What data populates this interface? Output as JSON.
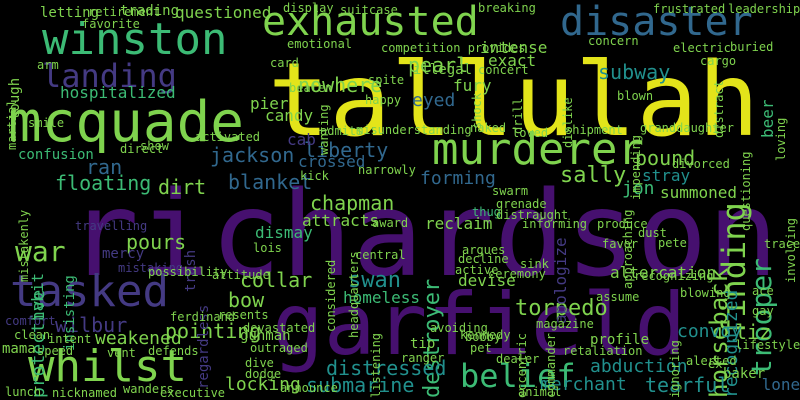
{
  "palette": {
    "background": "#000000",
    "yellow": "#e3e41a",
    "lime": "#7fd34e",
    "green": "#3cbb75",
    "teal": "#21908d",
    "blue": "#31688e",
    "indigo": "#443a83",
    "purple": "#46106f"
  },
  "words": [
    {
      "text": "richardson",
      "color": "#46106f",
      "orientation": "horizontal"
    },
    {
      "text": "tallulah",
      "color": "#e3e41a",
      "orientation": "horizontal"
    },
    {
      "text": "garfield",
      "color": "#46106f",
      "orientation": "horizontal"
    },
    {
      "text": "mcquade",
      "color": "#7fd34e",
      "orientation": "horizontal"
    },
    {
      "text": "whilst",
      "color": "#7fd34e",
      "orientation": "horizontal"
    },
    {
      "text": "exhausted",
      "color": "#7fd34e",
      "orientation": "horizontal"
    },
    {
      "text": "disaster",
      "color": "#31688e",
      "orientation": "horizontal"
    },
    {
      "text": "murderer",
      "color": "#7fd34e",
      "orientation": "horizontal"
    },
    {
      "text": "winston",
      "color": "#3cbb75",
      "orientation": "horizontal"
    },
    {
      "text": "tasked",
      "color": "#443a83",
      "orientation": "horizontal"
    },
    {
      "text": "landing",
      "color": "#443a83",
      "orientation": "horizontal"
    },
    {
      "text": "finding",
      "color": "#7fd34e",
      "orientation": "vertical"
    },
    {
      "text": "belief",
      "color": "#3cbb75",
      "orientation": "horizontal"
    },
    {
      "text": "war",
      "color": "#7fd34e",
      "orientation": "horizontal"
    },
    {
      "text": "trooper",
      "color": "#3cbb75",
      "orientation": "vertical"
    },
    {
      "text": "horseback",
      "color": "#7fd34e",
      "orientation": "vertical"
    },
    {
      "text": "destroyer",
      "color": "#3cbb75",
      "orientation": "vertical"
    },
    {
      "text": "torpedo",
      "color": "#7fd34e",
      "orientation": "horizontal"
    },
    {
      "text": "sally",
      "color": "#7fd34e",
      "orientation": "horizontal"
    },
    {
      "text": "jackson",
      "color": "#31688e",
      "orientation": "horizontal"
    },
    {
      "text": "liberty",
      "color": "#31688e",
      "orientation": "horizontal"
    },
    {
      "text": "nowhere",
      "color": "#7fd34e",
      "orientation": "horizontal"
    },
    {
      "text": "subway",
      "color": "#21908d",
      "orientation": "horizontal"
    },
    {
      "text": "hospitalized",
      "color": "#3cbb75",
      "orientation": "horizontal"
    },
    {
      "text": "pearl",
      "color": "#7fd34e",
      "orientation": "horizontal"
    },
    {
      "text": "dirt",
      "color": "#7fd34e",
      "orientation": "horizontal"
    },
    {
      "text": "floating",
      "color": "#3cbb75",
      "orientation": "horizontal"
    },
    {
      "text": "blanket",
      "color": "#31688e",
      "orientation": "horizontal"
    },
    {
      "text": "chapman",
      "color": "#7fd34e",
      "orientation": "horizontal"
    },
    {
      "text": "pound",
      "color": "#7fd34e",
      "orientation": "horizontal"
    },
    {
      "text": "swan",
      "color": "#21908d",
      "orientation": "horizontal"
    },
    {
      "text": "pours",
      "color": "#7fd34e",
      "orientation": "horizontal"
    },
    {
      "text": "protective",
      "color": "#3cbb75",
      "orientation": "vertical"
    },
    {
      "text": "collar",
      "color": "#7fd34e",
      "orientation": "horizontal"
    },
    {
      "text": "submarine",
      "color": "#21908d",
      "orientation": "horizontal"
    },
    {
      "text": "tearful",
      "color": "#21908d",
      "orientation": "horizontal"
    },
    {
      "text": "distressed",
      "color": "#21908d",
      "orientation": "horizontal"
    },
    {
      "text": "abduction",
      "color": "#21908d",
      "orientation": "horizontal"
    },
    {
      "text": "pointing",
      "color": "#7fd34e",
      "orientation": "horizontal"
    },
    {
      "text": "wilbur",
      "color": "#443a83",
      "orientation": "horizontal"
    },
    {
      "text": "bow",
      "color": "#7fd34e",
      "orientation": "horizontal"
    },
    {
      "text": "liz",
      "color": "#7fd34e",
      "orientation": "horizontal"
    },
    {
      "text": "convoy",
      "color": "#21908d",
      "orientation": "horizontal"
    },
    {
      "text": "recognized",
      "color": "#21908d",
      "orientation": "vertical"
    },
    {
      "text": "weakened",
      "color": "#7fd34e",
      "orientation": "horizontal"
    },
    {
      "text": "locking",
      "color": "#7fd34e",
      "orientation": "horizontal"
    },
    {
      "text": "merchant",
      "color": "#21908d",
      "orientation": "horizontal"
    },
    {
      "text": "lone",
      "color": "#31688e",
      "orientation": "horizontal"
    },
    {
      "text": "beer",
      "color": "#3cbb75",
      "orientation": "vertical"
    },
    {
      "text": "questioned",
      "color": "#7fd34e",
      "orientation": "horizontal"
    },
    {
      "text": "cab",
      "color": "#443a83",
      "orientation": "horizontal"
    },
    {
      "text": "crossed",
      "color": "#31688e",
      "orientation": "horizontal"
    },
    {
      "text": "forming",
      "color": "#31688e",
      "orientation": "horizontal"
    },
    {
      "text": "fury",
      "color": "#7fd34e",
      "orientation": "horizontal"
    },
    {
      "text": "eyed",
      "color": "#31688e",
      "orientation": "horizontal"
    },
    {
      "text": "intense",
      "color": "#7fd34e",
      "orientation": "horizontal"
    },
    {
      "text": "exact",
      "color": "#7fd34e",
      "orientation": "horizontal"
    },
    {
      "text": "jon",
      "color": "#3cbb75",
      "orientation": "horizontal"
    },
    {
      "text": "stray",
      "color": "#21908d",
      "orientation": "horizontal"
    },
    {
      "text": "summoned",
      "color": "#7fd34e",
      "orientation": "horizontal"
    },
    {
      "text": "apologize",
      "color": "#443a83",
      "orientation": "vertical"
    },
    {
      "text": "insisting",
      "color": "#3cbb75",
      "orientation": "vertical"
    },
    {
      "text": "habit",
      "color": "#3cbb75",
      "orientation": "vertical"
    },
    {
      "text": "ran",
      "color": "#31688e",
      "orientation": "horizontal"
    },
    {
      "text": "dismay",
      "color": "#3cbb75",
      "orientation": "horizontal"
    },
    {
      "text": "homeless",
      "color": "#3cbb75",
      "orientation": "horizontal"
    },
    {
      "text": "devise",
      "color": "#7fd34e",
      "orientation": "horizontal"
    },
    {
      "text": "altercation",
      "color": "#7fd34e",
      "orientation": "horizontal"
    },
    {
      "text": "pier",
      "color": "#7fd34e",
      "orientation": "horizontal"
    },
    {
      "text": "candy",
      "color": "#7fd34e",
      "orientation": "horizontal"
    },
    {
      "text": "confusion",
      "color": "#3cbb75",
      "orientation": "horizontal"
    },
    {
      "text": "trash",
      "color": "#443a83",
      "orientation": "vertical"
    },
    {
      "text": "regardless",
      "color": "#443a83",
      "orientation": "vertical"
    },
    {
      "text": "attracts",
      "color": "#7fd34e",
      "orientation": "horizontal"
    },
    {
      "text": "reclaim",
      "color": "#7fd34e",
      "orientation": "horizontal"
    },
    {
      "text": "thug",
      "color": "#3cbb75",
      "orientation": "horizontal"
    },
    {
      "text": "argues",
      "color": "#7fd34e",
      "orientation": "horizontal"
    },
    {
      "text": "active",
      "color": "#7fd34e",
      "orientation": "horizontal"
    },
    {
      "text": "dust",
      "color": "#7fd34e",
      "orientation": "horizontal"
    },
    {
      "text": "pete",
      "color": "#7fd34e",
      "orientation": "horizontal"
    },
    {
      "text": "produce",
      "color": "#7fd34e",
      "orientation": "horizontal"
    },
    {
      "text": "ceremony",
      "color": "#7fd34e",
      "orientation": "horizontal"
    },
    {
      "text": "sink",
      "color": "#7fd34e",
      "orientation": "horizontal"
    },
    {
      "text": "assume",
      "color": "#7fd34e",
      "orientation": "horizontal"
    },
    {
      "text": "tip",
      "color": "#7fd34e",
      "orientation": "horizontal"
    },
    {
      "text": "profile",
      "color": "#7fd34e",
      "orientation": "horizontal"
    },
    {
      "text": "retaliation",
      "color": "#7fd34e",
      "orientation": "horizontal"
    },
    {
      "text": "baker",
      "color": "#7fd34e",
      "orientation": "horizontal"
    },
    {
      "text": "ace",
      "color": "#7fd34e",
      "orientation": "horizontal"
    },
    {
      "text": "mercy",
      "color": "#443a83",
      "orientation": "horizontal"
    },
    {
      "text": "gunman",
      "color": "#7fd34e",
      "orientation": "horizontal"
    },
    {
      "text": "mistaking",
      "color": "#443a83",
      "orientation": "horizontal"
    },
    {
      "text": "travelling",
      "color": "#443a83",
      "orientation": "horizontal"
    },
    {
      "text": "possibility",
      "color": "#7fd34e",
      "orientation": "horizontal"
    },
    {
      "text": "attitude",
      "color": "#7fd34e",
      "orientation": "horizontal"
    },
    {
      "text": "comfort",
      "color": "#443a83",
      "orientation": "horizontal"
    },
    {
      "text": "clean",
      "color": "#7fd34e",
      "orientation": "horizontal"
    },
    {
      "text": "mama",
      "color": "#7fd34e",
      "orientation": "horizontal"
    },
    {
      "text": "intent",
      "color": "#7fd34e",
      "orientation": "horizontal"
    },
    {
      "text": "ferdinand",
      "color": "#7fd34e",
      "orientation": "horizontal"
    },
    {
      "text": "speed",
      "color": "#7fd34e",
      "orientation": "horizontal"
    },
    {
      "text": "vent",
      "color": "#7fd34e",
      "orientation": "horizontal"
    },
    {
      "text": "defends",
      "color": "#7fd34e",
      "orientation": "horizontal"
    },
    {
      "text": "dive",
      "color": "#7fd34e",
      "orientation": "horizontal"
    },
    {
      "text": "dodge",
      "color": "#7fd34e",
      "orientation": "horizontal"
    },
    {
      "text": "outraged",
      "color": "#7fd34e",
      "orientation": "horizontal"
    },
    {
      "text": "devastated",
      "color": "#7fd34e",
      "orientation": "horizontal"
    },
    {
      "text": "resents",
      "color": "#7fd34e",
      "orientation": "horizontal"
    },
    {
      "text": "lunch",
      "color": "#7fd34e",
      "orientation": "horizontal"
    },
    {
      "text": "nicknamed",
      "color": "#7fd34e",
      "orientation": "horizontal"
    },
    {
      "text": "wanders",
      "color": "#7fd34e",
      "orientation": "horizontal"
    },
    {
      "text": "executive",
      "color": "#7fd34e",
      "orientation": "horizontal"
    },
    {
      "text": "announce",
      "color": "#7fd34e",
      "orientation": "horizontal"
    },
    {
      "text": "ranger",
      "color": "#7fd34e",
      "orientation": "horizontal"
    },
    {
      "text": "pet",
      "color": "#7fd34e",
      "orientation": "horizontal"
    },
    {
      "text": "kennedy",
      "color": "#7fd34e",
      "orientation": "horizontal"
    },
    {
      "text": "dealer",
      "color": "#7fd34e",
      "orientation": "horizontal"
    },
    {
      "text": "avoiding",
      "color": "#7fd34e",
      "orientation": "horizontal"
    },
    {
      "text": "bobby",
      "color": "#7fd34e",
      "orientation": "horizontal"
    },
    {
      "text": "magazine",
      "color": "#7fd34e",
      "orientation": "horizontal"
    },
    {
      "text": "grenade",
      "color": "#7fd34e",
      "orientation": "horizontal"
    },
    {
      "text": "swarm",
      "color": "#7fd34e",
      "orientation": "horizontal"
    },
    {
      "text": "distraught",
      "color": "#7fd34e",
      "orientation": "horizontal"
    },
    {
      "text": "informing",
      "color": "#7fd34e",
      "orientation": "horizontal"
    },
    {
      "text": "award",
      "color": "#7fd34e",
      "orientation": "horizontal"
    },
    {
      "text": "central",
      "color": "#7fd34e",
      "orientation": "horizontal"
    },
    {
      "text": "decline",
      "color": "#7fd34e",
      "orientation": "horizontal"
    },
    {
      "text": "lois",
      "color": "#7fd34e",
      "orientation": "horizontal"
    },
    {
      "text": "favor",
      "color": "#7fd34e",
      "orientation": "horizontal"
    },
    {
      "text": "blowing",
      "color": "#7fd34e",
      "orientation": "horizontal"
    },
    {
      "text": "gay",
      "color": "#7fd34e",
      "orientation": "horizontal"
    },
    {
      "text": "lifestyle",
      "color": "#7fd34e",
      "orientation": "horizontal"
    },
    {
      "text": "ex",
      "color": "#7fd34e",
      "orientation": "horizontal"
    },
    {
      "text": "letting",
      "color": "#7fd34e",
      "orientation": "horizontal"
    },
    {
      "text": "favorite",
      "color": "#7fd34e",
      "orientation": "horizontal"
    },
    {
      "text": "retirement",
      "color": "#7fd34e",
      "orientation": "horizontal"
    },
    {
      "text": "trading",
      "color": "#7fd34e",
      "orientation": "horizontal"
    },
    {
      "text": "display",
      "color": "#7fd34e",
      "orientation": "horizontal"
    },
    {
      "text": "suitcase",
      "color": "#7fd34e",
      "orientation": "horizontal"
    },
    {
      "text": "breaking",
      "color": "#7fd34e",
      "orientation": "horizontal"
    },
    {
      "text": "frustrated",
      "color": "#7fd34e",
      "orientation": "horizontal"
    },
    {
      "text": "leadership",
      "color": "#7fd34e",
      "orientation": "horizontal"
    },
    {
      "text": "competition provides",
      "color": "#7fd34e",
      "orientation": "horizontal"
    },
    {
      "text": "concern",
      "color": "#7fd34e",
      "orientation": "horizontal"
    },
    {
      "text": "electric",
      "color": "#7fd34e",
      "orientation": "horizontal"
    },
    {
      "text": "buried",
      "color": "#7fd34e",
      "orientation": "horizontal"
    },
    {
      "text": "cargo",
      "color": "#7fd34e",
      "orientation": "horizontal"
    },
    {
      "text": "illegal",
      "color": "#7fd34e",
      "orientation": "horizontal"
    },
    {
      "text": "concert",
      "color": "#7fd34e",
      "orientation": "horizontal"
    },
    {
      "text": "spite",
      "color": "#7fd34e",
      "orientation": "horizontal"
    },
    {
      "text": "happy",
      "color": "#7fd34e",
      "orientation": "horizontal"
    },
    {
      "text": "beaten",
      "color": "#7fd34e",
      "orientation": "horizontal"
    },
    {
      "text": "card",
      "color": "#7fd34e",
      "orientation": "horizontal"
    },
    {
      "text": "emotional",
      "color": "#7fd34e",
      "orientation": "horizontal"
    },
    {
      "text": "tough",
      "color": "#7fd34e",
      "orientation": "horizontal"
    },
    {
      "text": "martial",
      "color": "#7fd34e",
      "orientation": "horizontal"
    },
    {
      "text": "smile",
      "color": "#7fd34e",
      "orientation": "horizontal"
    },
    {
      "text": "arm",
      "color": "#7fd34e",
      "orientation": "horizontal"
    },
    {
      "text": "admits",
      "color": "#7fd34e",
      "orientation": "horizontal"
    },
    {
      "text": "misunderstanding",
      "color": "#7fd34e",
      "orientation": "horizontal"
    },
    {
      "text": "naked",
      "color": "#7fd34e",
      "orientation": "horizontal"
    },
    {
      "text": "loved",
      "color": "#7fd34e",
      "orientation": "horizontal"
    },
    {
      "text": "shipment",
      "color": "#7fd34e",
      "orientation": "horizontal"
    },
    {
      "text": "granddaughter",
      "color": "#7fd34e",
      "orientation": "horizontal"
    },
    {
      "text": "divorced",
      "color": "#7fd34e",
      "orientation": "horizontal"
    },
    {
      "text": "activated",
      "color": "#7fd34e",
      "orientation": "horizontal"
    },
    {
      "text": "kick",
      "color": "#7fd34e",
      "orientation": "horizontal"
    },
    {
      "text": "direct",
      "color": "#7fd34e",
      "orientation": "horizontal"
    },
    {
      "text": "show",
      "color": "#7fd34e",
      "orientation": "horizontal"
    },
    {
      "text": "mistakenly",
      "color": "#7fd34e",
      "orientation": "horizontal"
    },
    {
      "text": "narrowly",
      "color": "#7fd34e",
      "orientation": "horizontal"
    },
    {
      "text": "questioning",
      "color": "#7fd34e",
      "orientation": "horizontal"
    },
    {
      "text": "loving",
      "color": "#7fd34e",
      "orientation": "horizontal"
    },
    {
      "text": "involving",
      "color": "#7fd34e",
      "orientation": "horizontal"
    },
    {
      "text": "trace",
      "color": "#7fd34e",
      "orientation": "horizontal"
    },
    {
      "text": "recognizing",
      "color": "#7fd34e",
      "orientation": "horizontal"
    },
    {
      "text": "approaching",
      "color": "#7fd34e",
      "orientation": "horizontal"
    },
    {
      "text": "ignoring",
      "color": "#7fd34e",
      "orientation": "horizontal"
    },
    {
      "text": "impending",
      "color": "#7fd34e",
      "orientation": "horizontal"
    },
    {
      "text": "alerted",
      "color": "#7fd34e",
      "orientation": "horizontal"
    },
    {
      "text": "commander",
      "color": "#7fd34e",
      "orientation": "horizontal"
    },
    {
      "text": "eccentric",
      "color": "#7fd34e",
      "orientation": "horizontal"
    },
    {
      "text": "listening",
      "color": "#7fd34e",
      "orientation": "horizontal"
    },
    {
      "text": "headquarters",
      "color": "#7fd34e",
      "orientation": "horizontal"
    },
    {
      "text": "considered",
      "color": "#7fd34e",
      "orientation": "horizontal"
    },
    {
      "text": "drill",
      "color": "#7fd34e",
      "orientation": "horizontal"
    },
    {
      "text": "dislike",
      "color": "#7fd34e",
      "orientation": "horizontal"
    },
    {
      "text": "shock",
      "color": "#7fd34e",
      "orientation": "horizontal"
    },
    {
      "text": "animal",
      "color": "#7fd34e",
      "orientation": "horizontal"
    },
    {
      "text": "blown",
      "color": "#7fd34e",
      "orientation": "horizontal"
    },
    {
      "text": "distract",
      "color": "#7fd34e",
      "orientation": "horizontal"
    },
    {
      "text": "wanting",
      "color": "#7fd34e",
      "orientation": "horizontal"
    }
  ]
}
